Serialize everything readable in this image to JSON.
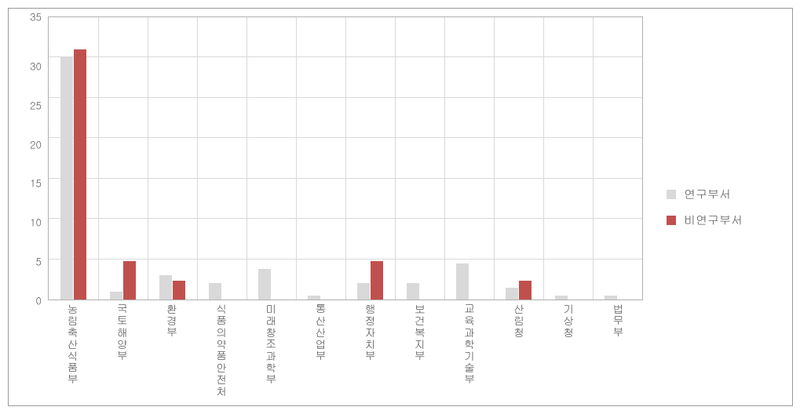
{
  "chart": {
    "type": "bar",
    "background_color": "#ffffff",
    "border_color": "#999999",
    "grid_color": "#d9d9d9",
    "axis_color": "#b0b0b0",
    "label_color": "#595959",
    "label_fontsize": 13,
    "xlabel_fontsize": 14,
    "ylim": [
      0,
      35
    ],
    "ytick_step": 5,
    "yticks": [
      35,
      30,
      25,
      20,
      15,
      10,
      5,
      0
    ],
    "bar_group_width": 0.52,
    "bar_width": 0.26,
    "categories": [
      "농림축산식품부",
      "국토해양부",
      "환경부",
      "식품의약품안전처",
      "미래창조과학부",
      "통산산업부",
      "행정자치부",
      "보건복지부",
      "교육과학기술부",
      "산림청",
      "기상청",
      "법무부"
    ],
    "series": [
      {
        "name": "연구부서",
        "color": "#d9d9d9",
        "values": [
          30,
          1,
          3,
          2,
          3.8,
          0.5,
          2,
          2,
          4.5,
          1.5,
          0.5,
          0.5
        ]
      },
      {
        "name": "비연구부서",
        "color": "#c0504d",
        "values": [
          31,
          4.8,
          2.3,
          0,
          0,
          0,
          4.8,
          0,
          0,
          2.3,
          0,
          0
        ]
      }
    ],
    "legend": {
      "position": "right",
      "items": [
        {
          "label": "연구부서",
          "color": "#d9d9d9"
        },
        {
          "label": "비연구부서",
          "color": "#c0504d"
        }
      ]
    }
  }
}
